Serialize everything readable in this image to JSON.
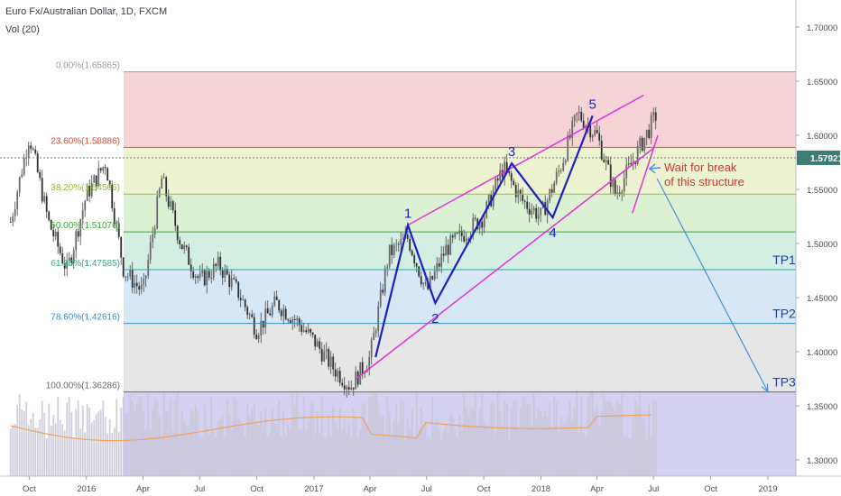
{
  "header": {
    "symbol_title": "Euro Fx/Australian Dollar, 1D, FXCM",
    "volume_label": "Vol (20)"
  },
  "colors": {
    "impulse": "#1f1fc7",
    "channel": "#e233d6",
    "projection": "#4a8fd6",
    "annotation": "#e0322b",
    "candle": "#4a4a4a",
    "volume_ma": "#f0a45c"
  },
  "chart_data": {
    "type": "line",
    "x": [
      "2015-09-01",
      "2015-10-01",
      "2015-11-01",
      "2015-12-01",
      "2016-01-01",
      "2016-02-01",
      "2016-03-01",
      "2016-04-01",
      "2016-05-01",
      "2016-06-01",
      "2016-07-01",
      "2016-08-01",
      "2016-09-01",
      "2016-10-01",
      "2016-11-01",
      "2016-12-01",
      "2017-01-01",
      "2017-02-01",
      "2017-03-01",
      "2017-04-01",
      "2017-05-01",
      "2017-06-01",
      "2017-07-01",
      "2017-08-01",
      "2017-09-01",
      "2017-10-01",
      "2017-11-01",
      "2017-12-01",
      "2018-01-01",
      "2018-02-01",
      "2018-03-01",
      "2018-04-01",
      "2018-05-01",
      "2018-06-01"
    ],
    "series": [
      {
        "values": [
          1.52,
          1.6,
          1.52,
          1.475,
          1.545,
          1.575,
          1.475,
          1.455,
          1.56,
          1.5,
          1.465,
          1.48,
          1.455,
          1.42,
          1.445,
          1.43,
          1.41,
          1.385,
          1.368,
          1.395,
          1.49,
          1.505,
          1.455,
          1.495,
          1.51,
          1.525,
          1.57,
          1.54,
          1.525,
          1.57,
          1.62,
          1.6,
          1.545,
          1.58
        ]
      }
    ],
    "volume_ma_note": "",
    "y_axis": {
      "range": [
        1.285,
        1.725
      ],
      "ticks": [
        "1.70000",
        "1.65000",
        "1.60000",
        "1.55000",
        "1.50000",
        "1.45000",
        "1.40000",
        "1.35000",
        "1.30000"
      ],
      "last_price": "1.57921",
      "last_price_value": 1.57921
    },
    "x_axis": {
      "ticks": [
        {
          "label": "Oct",
          "date": "2015-10-01"
        },
        {
          "label": "2016",
          "date": "2016-01-01"
        },
        {
          "label": "Apr",
          "date": "2016-04-01"
        },
        {
          "label": "Jul",
          "date": "2016-07-01"
        },
        {
          "label": "Oct",
          "date": "2016-10-01"
        },
        {
          "label": "2017",
          "date": "2017-01-01"
        },
        {
          "label": "Apr",
          "date": "2017-04-01"
        },
        {
          "label": "Jul",
          "date": "2017-07-01"
        },
        {
          "label": "Oct",
          "date": "2017-10-01"
        },
        {
          "label": "2018",
          "date": "2018-01-01"
        },
        {
          "label": "Apr",
          "date": "2018-04-01"
        },
        {
          "label": "Jul",
          "date": "2018-07-01"
        },
        {
          "label": "Oct",
          "date": "2018-10-01"
        },
        {
          "label": "2019",
          "date": "2019-01-01"
        }
      ]
    },
    "fib_levels": [
      {
        "label": "0.00%(1.65865)",
        "value": 1.65865,
        "color": "#9e9e9e",
        "band": "#f5d3d6"
      },
      {
        "label": "23.60%(1.58886)",
        "value": 1.58886,
        "color": "#e04a3a",
        "band": "#edf2d0"
      },
      {
        "label": "38.20%(1.54566)",
        "value": 1.54566,
        "color": "#8fc13a",
        "band": "#dcf1d4"
      },
      {
        "label": "50.00%(1.51076)",
        "value": 1.51076,
        "color": "#3aa53a",
        "band": "#d3eee2"
      },
      {
        "label": "61.80%(1.47585)",
        "value": 1.47585,
        "color": "#3aa58a",
        "band": "#d6e8f5"
      },
      {
        "label": "78.60%(1.42616)",
        "value": 1.42616,
        "color": "#3a8fc1",
        "band": "#e6e6e6"
      },
      {
        "label": "100.00%(1.36286)",
        "value": 1.36286,
        "color": "#6b6b6b",
        "band": "#d3d0f2"
      }
    ],
    "wave_points": [
      {
        "label": "1",
        "date": "2017-06-01",
        "value": 1.517
      },
      {
        "label": "2",
        "date": "2017-07-15",
        "value": 1.445
      },
      {
        "label": "3",
        "date": "2017-11-15",
        "value": 1.574
      },
      {
        "label": "4",
        "date": "2018-01-20",
        "value": 1.524
      },
      {
        "label": "5",
        "date": "2018-03-25",
        "value": 1.618
      }
    ],
    "wave_start": {
      "date": "2017-04-10",
      "value": 1.395
    },
    "channel_lower": {
      "start": {
        "date": "2017-03-10",
        "value": 1.375
      },
      "end": {
        "date": "2018-07-01",
        "value": 1.588
      }
    },
    "channel_upper": {
      "start": {
        "date": "2017-06-01",
        "value": 1.517
      },
      "end": {
        "date": "2018-06-15",
        "value": 1.637
      }
    },
    "wedge_upper": {
      "start": {
        "date": "2018-05-28",
        "value": 1.528
      },
      "end": {
        "date": "2018-07-08",
        "value": 1.6
      }
    },
    "annotations": [
      {
        "text_line1": "Wait for break",
        "text_line2": "of this structure"
      }
    ],
    "targets": [
      {
        "label": "TP1",
        "value": 1.47585
      },
      {
        "label": "TP2",
        "value": 1.42616
      },
      {
        "label": "TP3",
        "value": 1.36286
      }
    ],
    "projection": {
      "start": {
        "date": "2018-07-01",
        "value": 1.56
      },
      "end": {
        "date": "2019-01-01",
        "value": 1.363
      }
    }
  }
}
